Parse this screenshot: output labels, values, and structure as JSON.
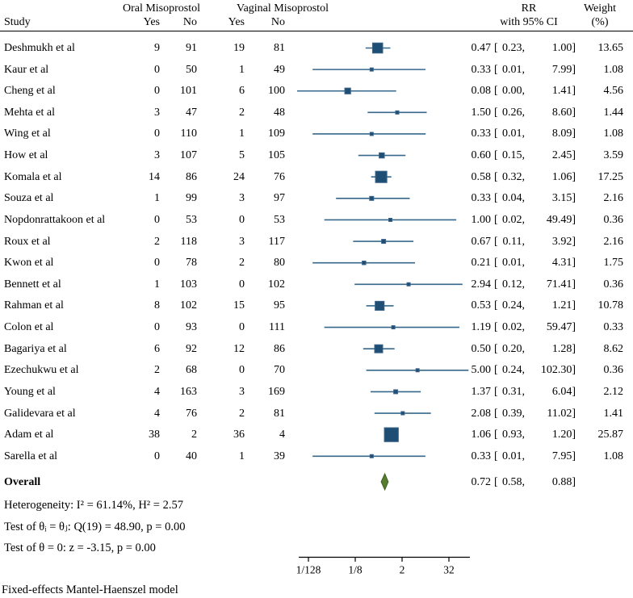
{
  "figure": {
    "header": {
      "study": "Study",
      "group_oral": "Oral Misoprostol",
      "group_vaginal": "Vaginal Misoprostol",
      "yes": "Yes",
      "no": "No",
      "rr_line1": "RR",
      "rr_line2": "with 95% CI",
      "weight_line1": "Weight",
      "weight_line2": "(%)"
    },
    "stats": {
      "heterogeneity": "Heterogeneity: I² = 61.14%, H² = 2.57",
      "test_theta": "Test of θᵢ = θⱼ: Q(19) = 48.90, p = 0.00",
      "test_z": "Test of θ = 0: z = -3.15, p = 0.00"
    },
    "footer": "Fixed-effects Mantel-Haenszel model",
    "colors": {
      "marker": "#1f4e75",
      "marker_border": "#3a6488",
      "ci_line": "#36688c",
      "diamond": "#567d2f",
      "diamond_border": "#3f6122",
      "axis": "#000000",
      "text": "#000000"
    }
  },
  "chart_data": {
    "type": "forest",
    "title": "",
    "effect_measure": "RR",
    "x_scale": "log2",
    "x_ticks": [
      {
        "label": "1/128",
        "value": 0.0078125
      },
      {
        "label": "1/8",
        "value": 0.125
      },
      {
        "label": "2",
        "value": 2
      },
      {
        "label": "32",
        "value": 32
      }
    ],
    "studies": [
      {
        "study": "Deshmukh et al",
        "oral_yes": 9,
        "oral_no": 91,
        "vaginal_yes": 19,
        "vaginal_no": 81,
        "rr": 0.47,
        "ci_low": 0.23,
        "ci_high": 1.0,
        "weight": 13.65
      },
      {
        "study": "Kaur et al",
        "oral_yes": 0,
        "oral_no": 50,
        "vaginal_yes": 1,
        "vaginal_no": 49,
        "rr": 0.33,
        "ci_low": 0.01,
        "ci_high": 7.99,
        "weight": 1.08
      },
      {
        "study": "Cheng et al",
        "oral_yes": 0,
        "oral_no": 101,
        "vaginal_yes": 6,
        "vaginal_no": 100,
        "rr": 0.08,
        "ci_low": 0.0,
        "ci_high": 1.41,
        "weight": 4.56
      },
      {
        "study": "Mehta et al",
        "oral_yes": 3,
        "oral_no": 47,
        "vaginal_yes": 2,
        "vaginal_no": 48,
        "rr": 1.5,
        "ci_low": 0.26,
        "ci_high": 8.6,
        "weight": 1.44
      },
      {
        "study": "Wing et al",
        "oral_yes": 0,
        "oral_no": 110,
        "vaginal_yes": 1,
        "vaginal_no": 109,
        "rr": 0.33,
        "ci_low": 0.01,
        "ci_high": 8.09,
        "weight": 1.08
      },
      {
        "study": "How et al",
        "oral_yes": 3,
        "oral_no": 107,
        "vaginal_yes": 5,
        "vaginal_no": 105,
        "rr": 0.6,
        "ci_low": 0.15,
        "ci_high": 2.45,
        "weight": 3.59
      },
      {
        "study": "Komala et al",
        "oral_yes": 14,
        "oral_no": 86,
        "vaginal_yes": 24,
        "vaginal_no": 76,
        "rr": 0.58,
        "ci_low": 0.32,
        "ci_high": 1.06,
        "weight": 17.25
      },
      {
        "study": "Souza et al",
        "oral_yes": 1,
        "oral_no": 99,
        "vaginal_yes": 3,
        "vaginal_no": 97,
        "rr": 0.33,
        "ci_low": 0.04,
        "ci_high": 3.15,
        "weight": 2.16
      },
      {
        "study": "Nopdonrattakoon et al",
        "oral_yes": 0,
        "oral_no": 53,
        "vaginal_yes": 0,
        "vaginal_no": 53,
        "rr": 1.0,
        "ci_low": 0.02,
        "ci_high": 49.49,
        "weight": 0.36
      },
      {
        "study": "Roux et al",
        "oral_yes": 2,
        "oral_no": 118,
        "vaginal_yes": 3,
        "vaginal_no": 117,
        "rr": 0.67,
        "ci_low": 0.11,
        "ci_high": 3.92,
        "weight": 2.16
      },
      {
        "study": "Kwon et al",
        "oral_yes": 0,
        "oral_no": 78,
        "vaginal_yes": 2,
        "vaginal_no": 80,
        "rr": 0.21,
        "ci_low": 0.01,
        "ci_high": 4.31,
        "weight": 1.75
      },
      {
        "study": "Bennett et al",
        "oral_yes": 1,
        "oral_no": 103,
        "vaginal_yes": 0,
        "vaginal_no": 102,
        "rr": 2.94,
        "ci_low": 0.12,
        "ci_high": 71.41,
        "weight": 0.36
      },
      {
        "study": "Rahman et al",
        "oral_yes": 8,
        "oral_no": 102,
        "vaginal_yes": 15,
        "vaginal_no": 95,
        "rr": 0.53,
        "ci_low": 0.24,
        "ci_high": 1.21,
        "weight": 10.78
      },
      {
        "study": "Colon et al",
        "oral_yes": 0,
        "oral_no": 93,
        "vaginal_yes": 0,
        "vaginal_no": 111,
        "rr": 1.19,
        "ci_low": 0.02,
        "ci_high": 59.47,
        "weight": 0.33
      },
      {
        "study": "Bagariya et al",
        "oral_yes": 6,
        "oral_no": 92,
        "vaginal_yes": 12,
        "vaginal_no": 86,
        "rr": 0.5,
        "ci_low": 0.2,
        "ci_high": 1.28,
        "weight": 8.62
      },
      {
        "study": "Ezechukwu et al",
        "oral_yes": 2,
        "oral_no": 68,
        "vaginal_yes": 0,
        "vaginal_no": 70,
        "rr": 5.0,
        "ci_low": 0.24,
        "ci_high": 102.3,
        "weight": 0.36
      },
      {
        "study": "Young et al",
        "oral_yes": 4,
        "oral_no": 163,
        "vaginal_yes": 3,
        "vaginal_no": 169,
        "rr": 1.37,
        "ci_low": 0.31,
        "ci_high": 6.04,
        "weight": 2.12
      },
      {
        "study": "Galidevara et al",
        "oral_yes": 4,
        "oral_no": 76,
        "vaginal_yes": 2,
        "vaginal_no": 81,
        "rr": 2.08,
        "ci_low": 0.39,
        "ci_high": 11.02,
        "weight": 1.41
      },
      {
        "study": "Adam et al",
        "oral_yes": 38,
        "oral_no": 2,
        "vaginal_yes": 36,
        "vaginal_no": 4,
        "rr": 1.06,
        "ci_low": 0.93,
        "ci_high": 1.2,
        "weight": 25.87
      },
      {
        "study": "Sarella et al",
        "oral_yes": 0,
        "oral_no": 40,
        "vaginal_yes": 1,
        "vaginal_no": 39,
        "rr": 0.33,
        "ci_low": 0.01,
        "ci_high": 7.95,
        "weight": 1.08
      }
    ],
    "overall": {
      "label": "Overall",
      "rr": 0.72,
      "ci_low": 0.58,
      "ci_high": 0.88
    }
  }
}
